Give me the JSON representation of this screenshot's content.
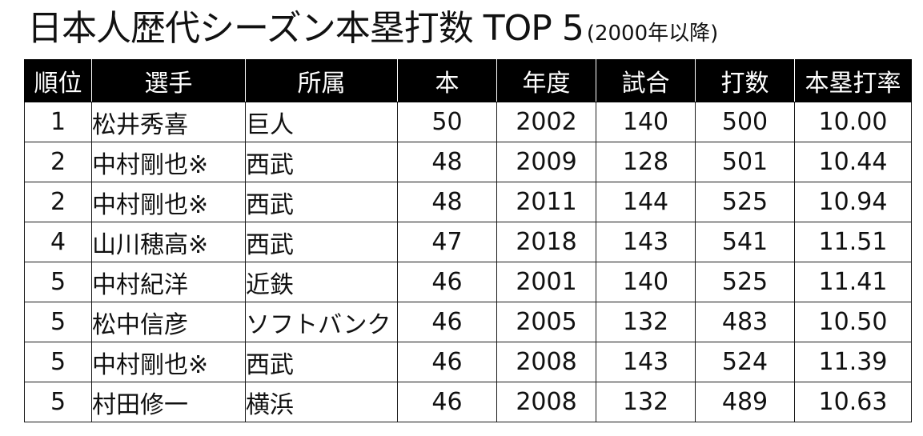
{
  "title": {
    "main": "日本人歴代シーズン本塁打数 TOP 5",
    "sub": "(2000年以降)"
  },
  "table": {
    "headers": [
      "順位",
      "選手",
      "所属",
      "本",
      "年度",
      "試合",
      "打数",
      "本塁打率"
    ],
    "rows": [
      [
        "1",
        "松井秀喜",
        "巨人",
        "50",
        "2002",
        "140",
        "500",
        "10.00"
      ],
      [
        "2",
        "中村剛也※",
        "西武",
        "48",
        "2009",
        "128",
        "501",
        "10.44"
      ],
      [
        "2",
        "中村剛也※",
        "西武",
        "48",
        "2011",
        "144",
        "525",
        "10.94"
      ],
      [
        "4",
        "山川穂高※",
        "西武",
        "47",
        "2018",
        "143",
        "541",
        "11.51"
      ],
      [
        "5",
        "中村紀洋",
        "近鉄",
        "46",
        "2001",
        "140",
        "525",
        "11.41"
      ],
      [
        "5",
        "松中信彦",
        "ソフトバンク",
        "46",
        "2005",
        "132",
        "483",
        "10.50"
      ],
      [
        "5",
        "中村剛也※",
        "西武",
        "46",
        "2008",
        "143",
        "524",
        "11.39"
      ],
      [
        "5",
        "村田修一",
        "横浜",
        "46",
        "2008",
        "132",
        "489",
        "10.63"
      ]
    ]
  },
  "colors": {
    "header_bg": "#000000",
    "header_text": "#ffffff",
    "border": "#1a1a1a",
    "text": "#111111"
  }
}
